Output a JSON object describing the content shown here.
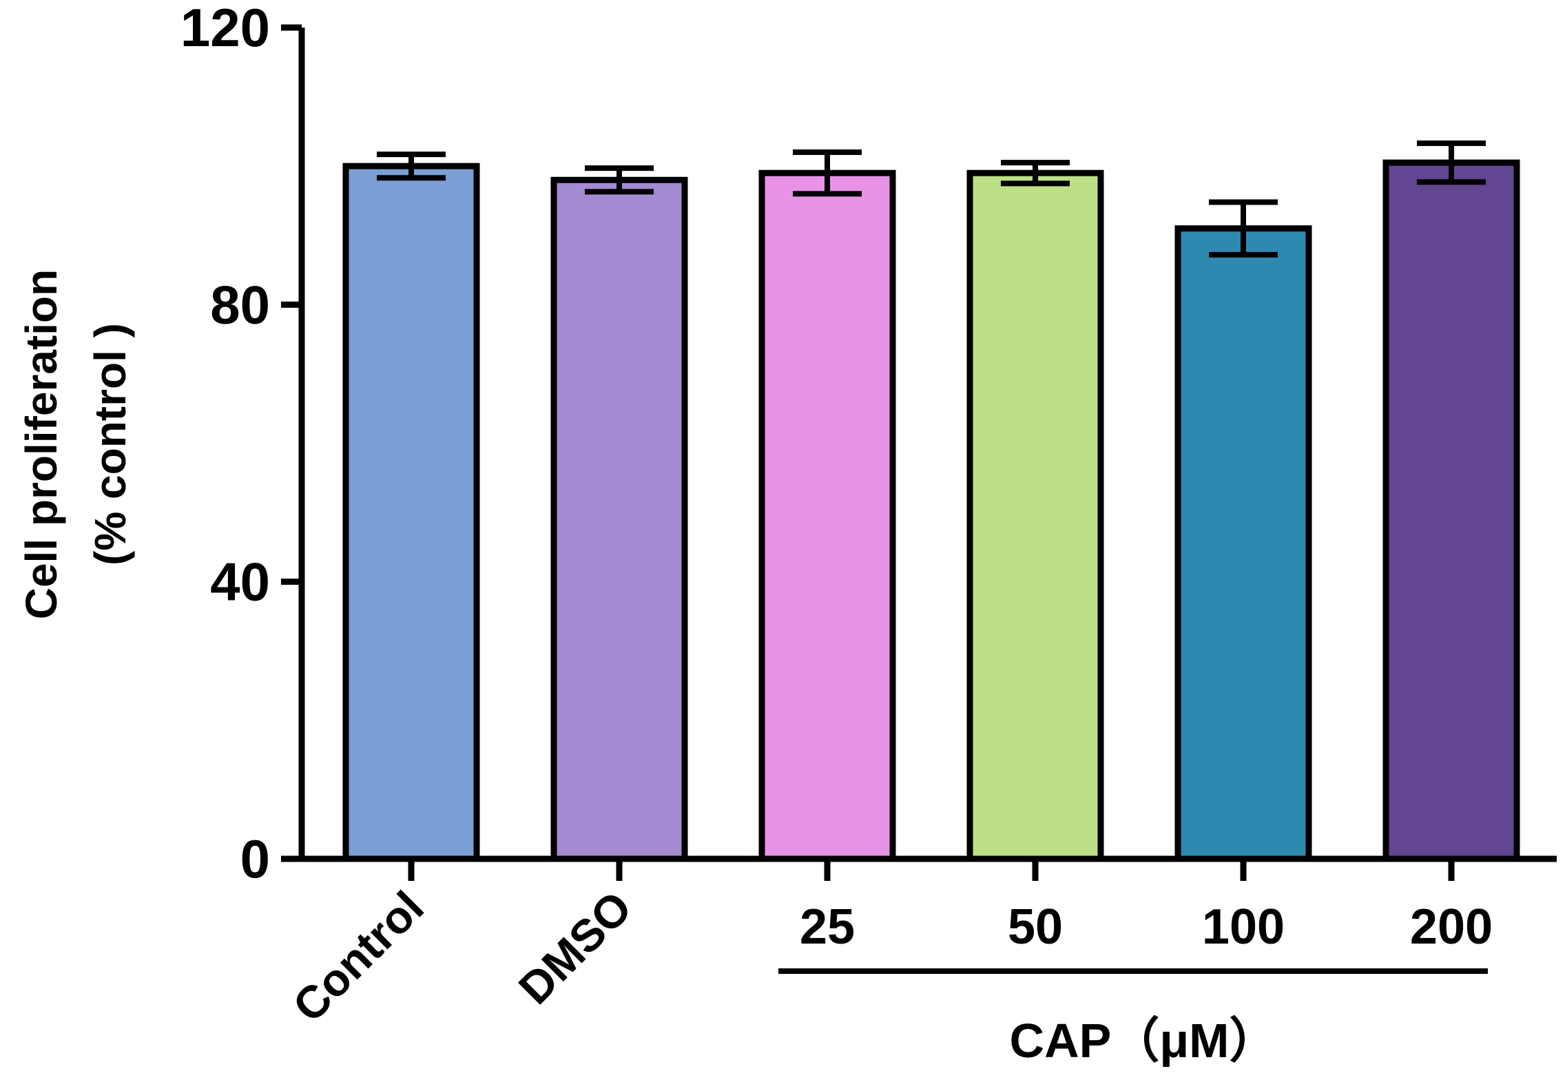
{
  "chart_data": {
    "type": "bar",
    "title": "",
    "xlabel": "",
    "ylabel_lines": [
      "Cell proliferation",
      "(% control )"
    ],
    "ylim": [
      0,
      120
    ],
    "yticks": [
      0,
      40,
      80,
      120
    ],
    "categories": [
      "Control",
      "DMSO",
      "25",
      "50",
      "100",
      "200"
    ],
    "values": [
      100,
      98,
      99,
      99,
      91,
      100.5
    ],
    "errors": [
      1.7,
      1.7,
      3.0,
      1.5,
      3.8,
      2.8
    ],
    "colors": [
      "#7b9fd4",
      "#a48ad1",
      "#e892e8",
      "#bddf86",
      "#2e89b0",
      "#634691"
    ],
    "rotated_categories": [
      "Control",
      "DMSO"
    ],
    "group": {
      "label": "CAP（μM）",
      "categories": [
        "25",
        "50",
        "100",
        "200"
      ]
    }
  }
}
